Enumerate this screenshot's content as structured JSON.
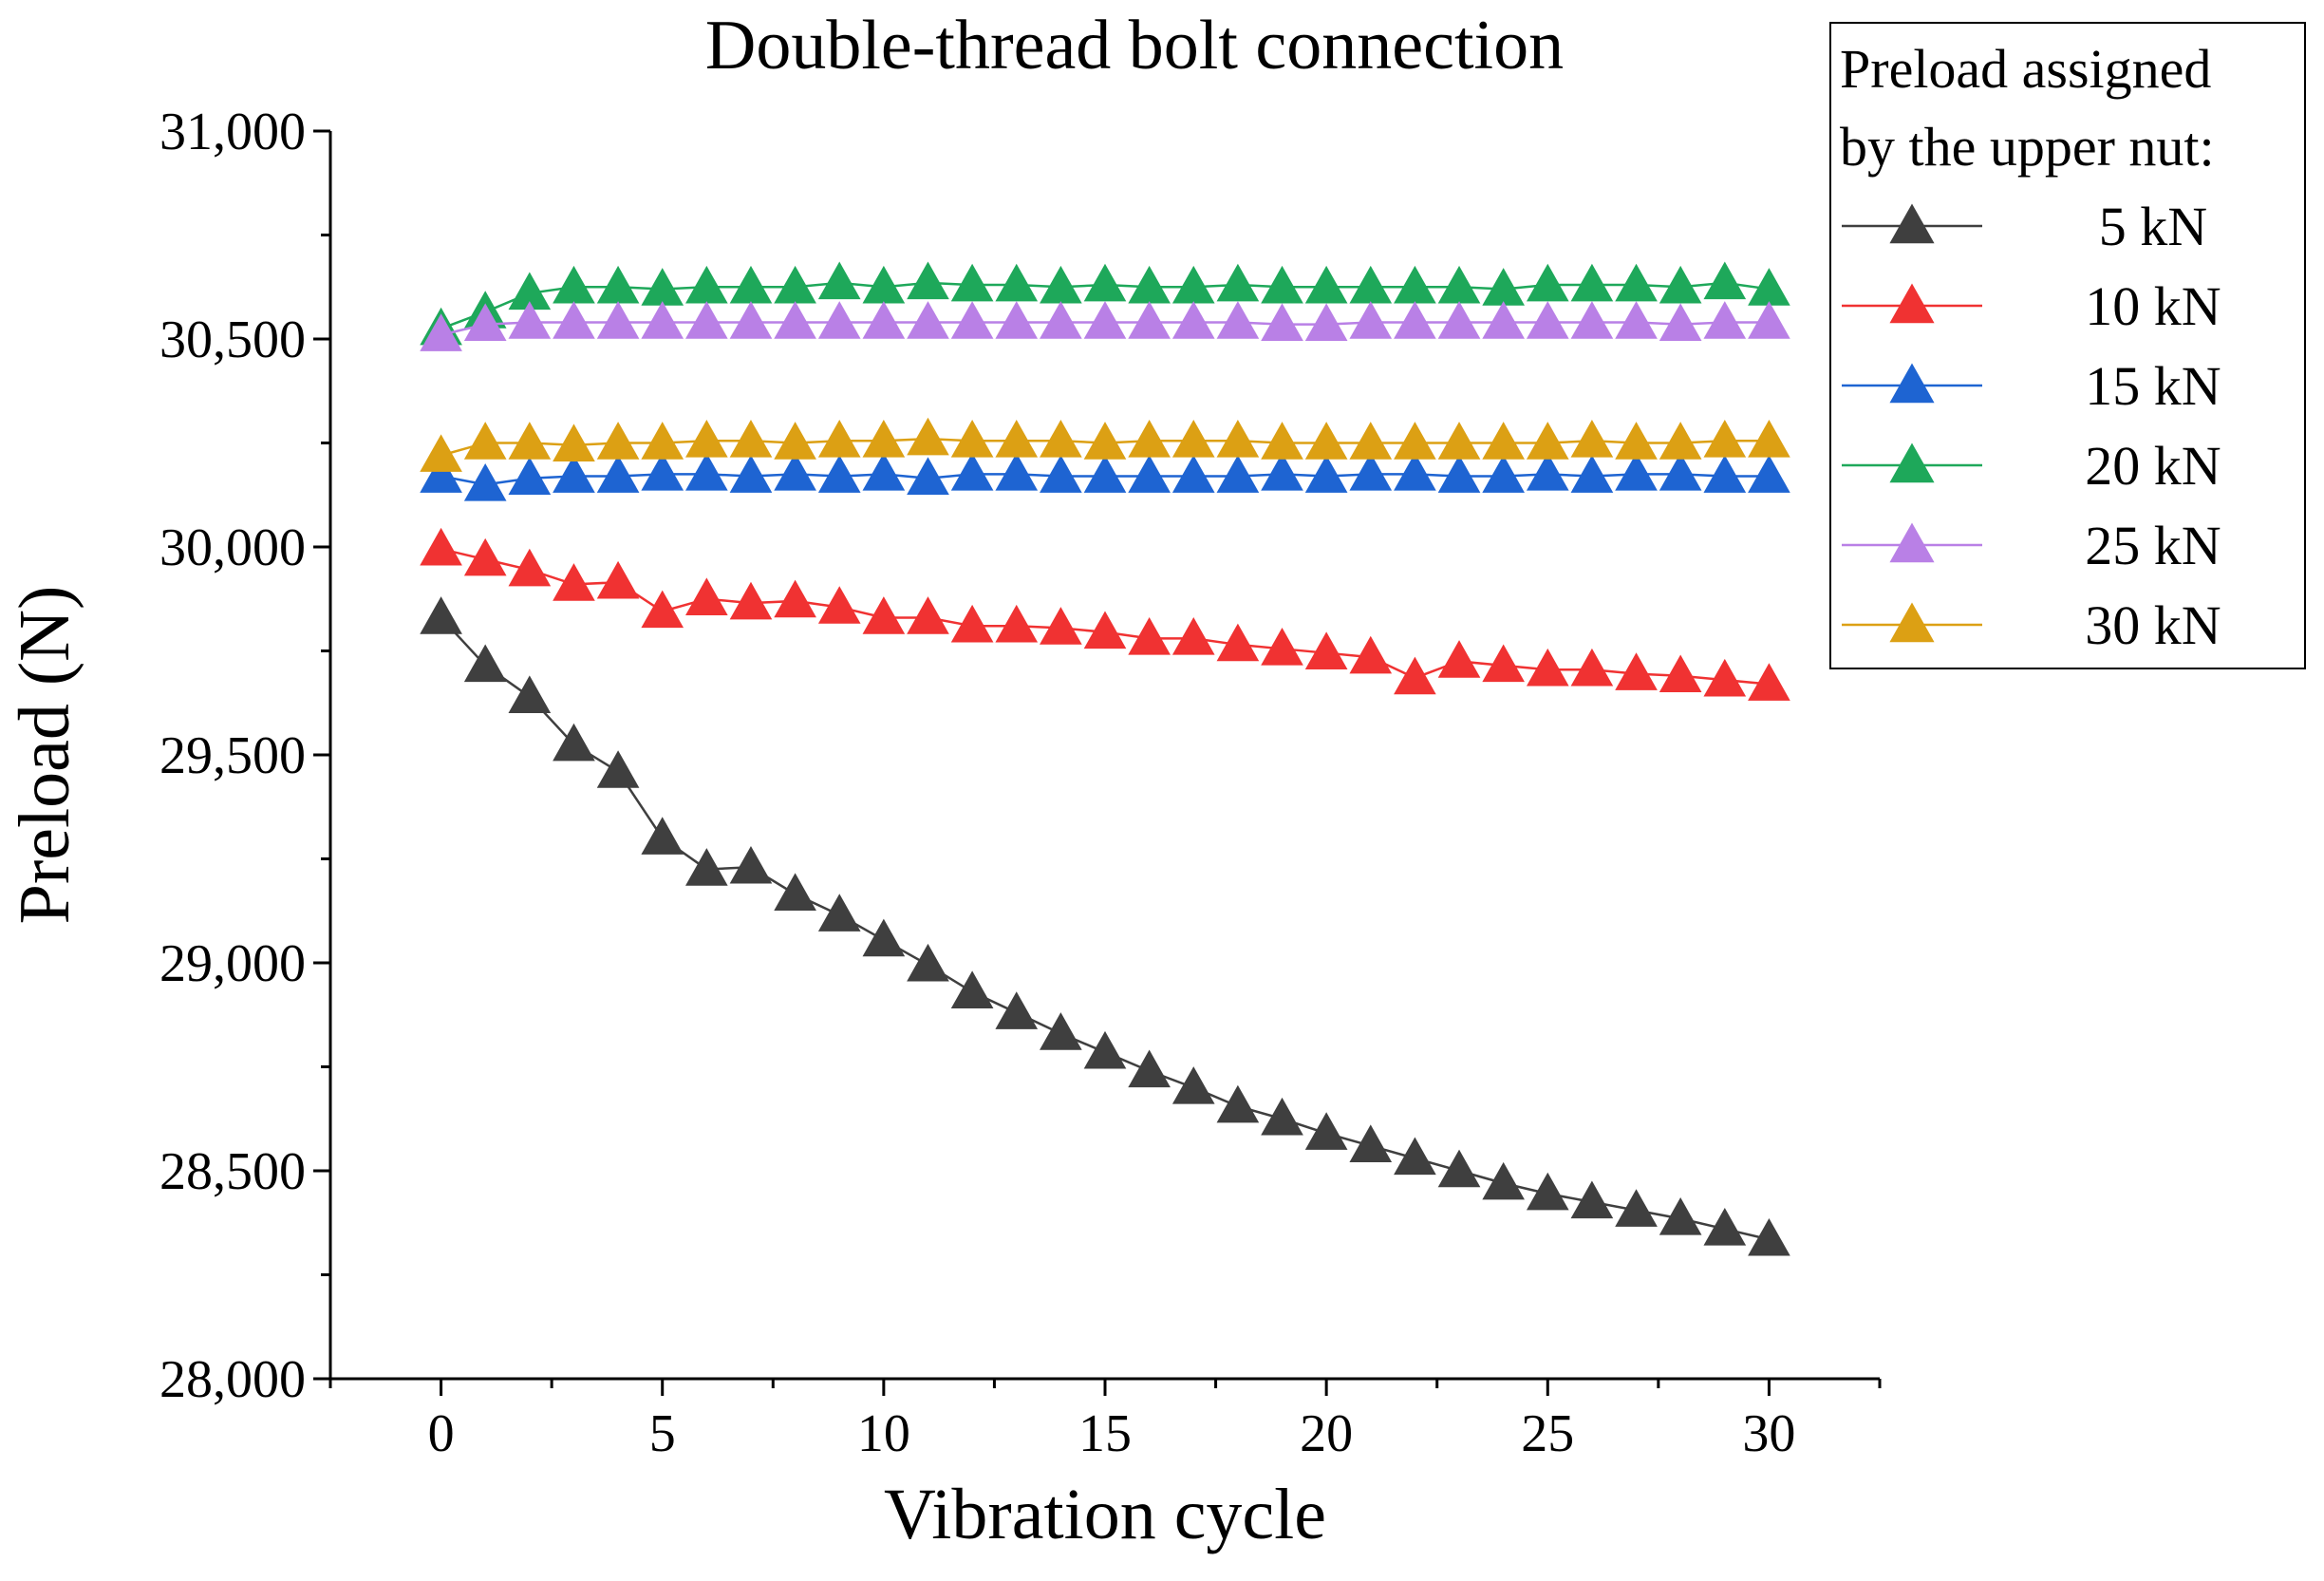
{
  "chart_data": {
    "type": "line",
    "title": "Double-thread bolt connection",
    "xlabel": "Vibration cycle",
    "ylabel": "Preload (N)",
    "xlim": [
      -2.5,
      32.5
    ],
    "ylim": [
      28000,
      31000
    ],
    "xticks": [
      0,
      5,
      10,
      15,
      20,
      25,
      30
    ],
    "xtick_labels": [
      "0",
      "5",
      "10",
      "15",
      "20",
      "25",
      "30"
    ],
    "yticks": [
      28000,
      28500,
      29000,
      29500,
      30000,
      30500,
      31000
    ],
    "ytick_labels": [
      "28,000",
      "28,500",
      "29,000",
      "29,500",
      "30,000",
      "30,500",
      "31,000"
    ],
    "grid": false,
    "marker": "triangle",
    "legend": {
      "title_lines": [
        "Preload assigned",
        "by the upper nut:"
      ],
      "placement": "top-right outside"
    },
    "x": [
      0,
      1,
      2,
      3,
      4,
      5,
      6,
      7,
      8,
      9,
      10,
      11,
      12,
      13,
      14,
      15,
      16,
      17,
      18,
      19,
      20,
      21,
      22,
      23,
      24,
      25,
      26,
      27,
      28,
      29,
      30
    ],
    "series": [
      {
        "name": "5 kN",
        "color": "#3f3f3f",
        "values": [
          29830,
          29715,
          29640,
          29525,
          29460,
          29300,
          29225,
          29230,
          29165,
          29115,
          29055,
          28995,
          28930,
          28880,
          28830,
          28785,
          28740,
          28700,
          28655,
          28625,
          28590,
          28560,
          28530,
          28500,
          28470,
          28445,
          28425,
          28405,
          28385,
          28360,
          28335
        ]
      },
      {
        "name": "10 kN",
        "color": "#f03232",
        "values": [
          29995,
          29970,
          29945,
          29910,
          29915,
          29845,
          29875,
          29865,
          29870,
          29855,
          29830,
          29830,
          29810,
          29810,
          29805,
          29795,
          29780,
          29780,
          29765,
          29755,
          29745,
          29735,
          29685,
          29725,
          29715,
          29705,
          29705,
          29695,
          29690,
          29680,
          29670
        ]
      },
      {
        "name": "15 kN",
        "color": "#1e64d2",
        "values": [
          30170,
          30150,
          30165,
          30170,
          30170,
          30175,
          30175,
          30170,
          30175,
          30170,
          30175,
          30165,
          30175,
          30175,
          30170,
          30170,
          30170,
          30170,
          30170,
          30175,
          30170,
          30175,
          30175,
          30170,
          30170,
          30175,
          30170,
          30175,
          30175,
          30170,
          30170
        ]
      },
      {
        "name": "20 kN",
        "color": "#1ea85a",
        "values": [
          30525,
          30565,
          30610,
          30625,
          30625,
          30620,
          30625,
          30625,
          30625,
          30635,
          30625,
          30635,
          30630,
          30630,
          30625,
          30630,
          30625,
          30625,
          30630,
          30625,
          30625,
          30625,
          30625,
          30625,
          30620,
          30630,
          30630,
          30630,
          30625,
          30635,
          30620
        ]
      },
      {
        "name": "25 kN",
        "color": "#b980e6",
        "values": [
          30510,
          30535,
          30540,
          30540,
          30540,
          30540,
          30540,
          30540,
          30540,
          30540,
          30540,
          30540,
          30540,
          30540,
          30540,
          30540,
          30540,
          30540,
          30540,
          30535,
          30535,
          30540,
          30540,
          30540,
          30540,
          30540,
          30540,
          30540,
          30535,
          30540,
          30540
        ]
      },
      {
        "name": "30 kN",
        "color": "#dca014",
        "values": [
          30220,
          30250,
          30250,
          30245,
          30250,
          30250,
          30255,
          30255,
          30250,
          30255,
          30255,
          30260,
          30255,
          30255,
          30255,
          30250,
          30255,
          30255,
          30255,
          30250,
          30250,
          30250,
          30250,
          30250,
          30250,
          30250,
          30255,
          30250,
          30250,
          30255,
          30255
        ]
      }
    ]
  }
}
